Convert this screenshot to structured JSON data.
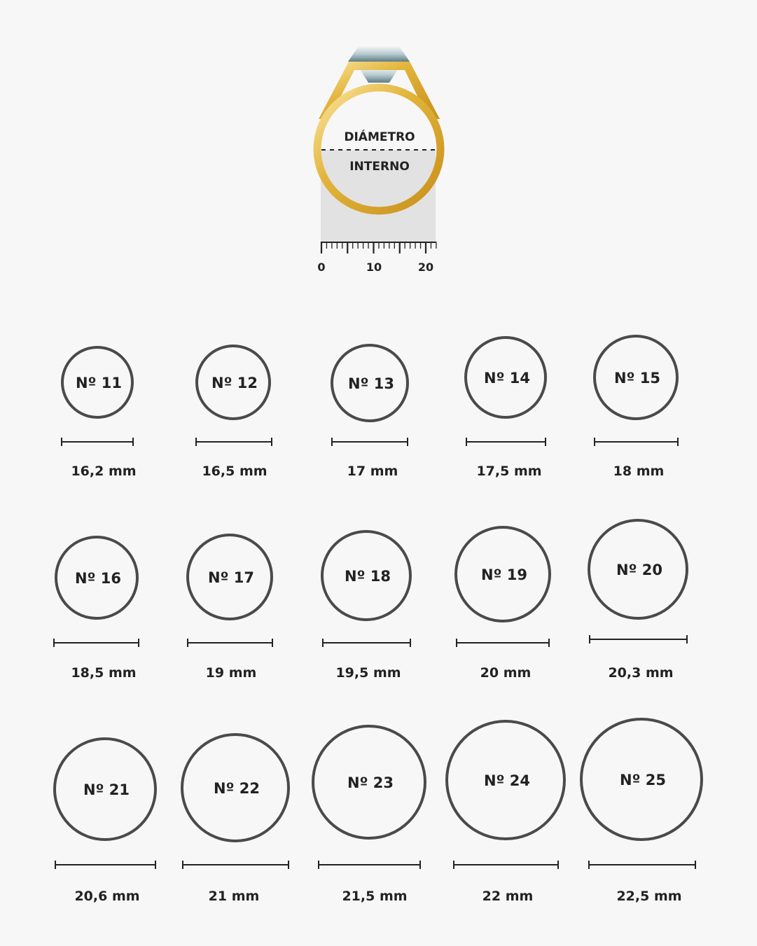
{
  "illustration": {
    "label_top": "DIÁMETRO",
    "label_bottom": "INTERNO",
    "ruler_ticks": [
      "0",
      "10",
      "20"
    ],
    "ring_color": "#e2b43a",
    "gem_color": "#9fb8bf"
  },
  "colors": {
    "circle": "#4a4a4a",
    "text": "#222222",
    "background": "#f7f7f7"
  },
  "sizes": [
    {
      "label": "Nº 11",
      "diameter": "16,2 mm"
    },
    {
      "label": "Nº 12",
      "diameter": "16,5 mm"
    },
    {
      "label": "Nº 13",
      "diameter": "17 mm"
    },
    {
      "label": "Nº 14",
      "diameter": "17,5 mm"
    },
    {
      "label": "Nº 15",
      "diameter": "18 mm"
    },
    {
      "label": "Nº 16",
      "diameter": "18,5 mm"
    },
    {
      "label": "Nº 17",
      "diameter": "19 mm"
    },
    {
      "label": "Nº 18",
      "diameter": "19,5 mm"
    },
    {
      "label": "Nº 19",
      "diameter": "20 mm"
    },
    {
      "label": "Nº 20",
      "diameter": "20,3 mm"
    },
    {
      "label": "Nº 21",
      "diameter": "20,6 mm"
    },
    {
      "label": "Nº 22",
      "diameter": "21 mm"
    },
    {
      "label": "Nº 23",
      "diameter": "21,5 mm"
    },
    {
      "label": "Nº 24",
      "diameter": "22 mm"
    },
    {
      "label": "Nº 25",
      "diameter": "22,5 mm"
    }
  ]
}
